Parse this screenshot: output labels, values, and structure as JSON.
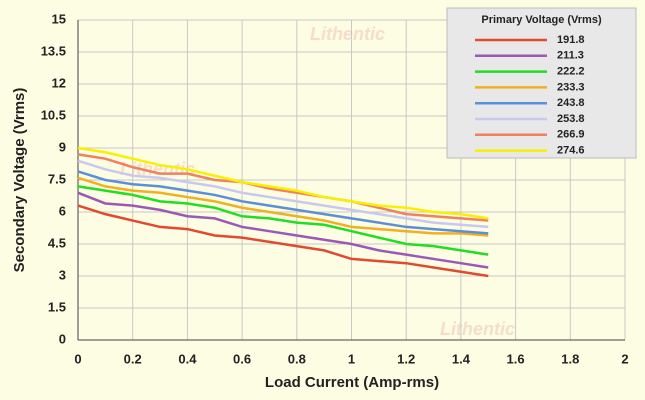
{
  "chart_data": {
    "type": "line",
    "x_label": "Load Current (Amp-rms)",
    "y_label": "Secondary Voltage (Vrms)",
    "legend_title": "Primary Voltage (Vrms)",
    "legend_position": "upper right",
    "watermark": "Lithentic",
    "grid": true,
    "x": [
      0,
      0.1,
      0.2,
      0.3,
      0.4,
      0.5,
      0.6,
      0.7,
      0.8,
      0.9,
      1.0,
      1.1,
      1.2,
      1.3,
      1.4,
      1.5
    ],
    "xlim": [
      0,
      2
    ],
    "xticks": [
      0,
      0.2,
      0.4,
      0.6,
      0.8,
      1,
      1.2,
      1.4,
      1.6,
      1.8,
      2
    ],
    "ylim": [
      0,
      15
    ],
    "yticks": [
      0,
      1.5,
      3,
      4.5,
      6,
      7.5,
      9,
      10.5,
      12,
      13.5,
      15
    ],
    "series": [
      {
        "name": "191.8",
        "color": "#e04a30",
        "values": [
          6.3,
          5.9,
          5.6,
          5.3,
          5.2,
          4.9,
          4.8,
          4.6,
          4.4,
          4.2,
          3.8,
          3.7,
          3.6,
          3.4,
          3.2,
          3.0
        ]
      },
      {
        "name": "211.3",
        "color": "#9b59b6",
        "values": [
          6.9,
          6.4,
          6.3,
          6.1,
          5.8,
          5.7,
          5.3,
          5.1,
          4.9,
          4.7,
          4.5,
          4.2,
          4.0,
          3.8,
          3.6,
          3.4
        ]
      },
      {
        "name": "222.2",
        "color": "#22dd22",
        "values": [
          7.2,
          7.0,
          6.8,
          6.5,
          6.4,
          6.2,
          5.8,
          5.7,
          5.5,
          5.4,
          5.1,
          4.8,
          4.5,
          4.4,
          4.2,
          4.0
        ]
      },
      {
        "name": "233.3",
        "color": "#f0b020",
        "values": [
          7.6,
          7.2,
          7.0,
          6.9,
          6.7,
          6.5,
          6.2,
          6.0,
          5.8,
          5.6,
          5.3,
          5.2,
          5.1,
          5.0,
          5.0,
          4.9
        ]
      },
      {
        "name": "243.8",
        "color": "#5b8fd8",
        "values": [
          7.9,
          7.5,
          7.3,
          7.2,
          7.0,
          6.8,
          6.5,
          6.3,
          6.1,
          5.9,
          5.7,
          5.5,
          5.3,
          5.2,
          5.1,
          5.0
        ]
      },
      {
        "name": "253.8",
        "color": "#c8c8f0",
        "values": [
          8.4,
          8.0,
          7.7,
          7.6,
          7.4,
          7.2,
          6.9,
          6.7,
          6.5,
          6.3,
          6.1,
          5.9,
          5.7,
          5.5,
          5.4,
          5.3
        ]
      },
      {
        "name": "266.9",
        "color": "#f08060",
        "values": [
          8.7,
          8.5,
          8.1,
          7.8,
          7.8,
          7.5,
          7.4,
          7.1,
          6.9,
          6.7,
          6.5,
          6.2,
          5.9,
          5.8,
          5.7,
          5.6
        ]
      },
      {
        "name": "274.6",
        "color": "#f8f000",
        "values": [
          9.0,
          8.8,
          8.5,
          8.2,
          8.0,
          7.7,
          7.4,
          7.2,
          7.0,
          6.7,
          6.5,
          6.3,
          6.2,
          6.0,
          5.9,
          5.7
        ]
      }
    ]
  }
}
